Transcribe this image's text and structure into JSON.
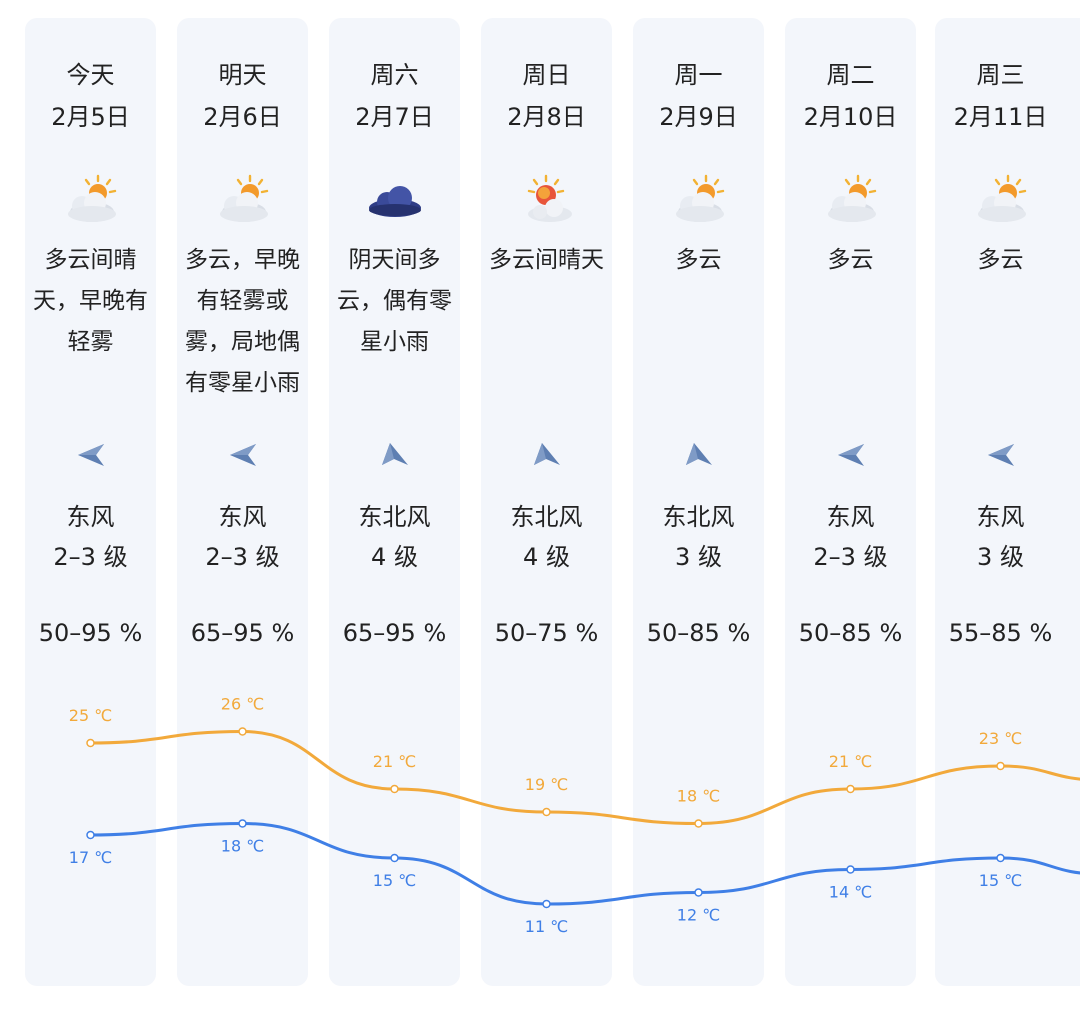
{
  "days": [
    {
      "weekday": "今天",
      "date": "2月5日",
      "icon": "partly-cloudy-icon",
      "desc": "多云间晴天，早晚有轻雾",
      "wind_icon": "east-wind-arrow-icon",
      "wind_dir": "东风",
      "wind_level": "2–3 级",
      "humidity": "50–95 %"
    },
    {
      "weekday": "明天",
      "date": "2月6日",
      "icon": "partly-cloudy-icon",
      "desc": "多云，早晚有轻雾或雾，局地偶有零星小雨",
      "wind_icon": "east-wind-arrow-icon",
      "wind_dir": "东风",
      "wind_level": "2–3 级",
      "humidity": "65–95 %"
    },
    {
      "weekday": "周六",
      "date": "2月7日",
      "icon": "overcast-cloud-icon",
      "desc": "阴天间多云，偶有零星小雨",
      "wind_icon": "northeast-wind-arrow-icon",
      "wind_dir": "东北风",
      "wind_level": "4 级",
      "humidity": "65–95 %"
    },
    {
      "weekday": "周日",
      "date": "2月8日",
      "icon": "sunny-cloudy-icon",
      "desc": "多云间晴天",
      "wind_icon": "northeast-wind-arrow-icon",
      "wind_dir": "东北风",
      "wind_level": "4 级",
      "humidity": "50–75 %"
    },
    {
      "weekday": "周一",
      "date": "2月9日",
      "icon": "partly-cloudy-icon",
      "desc": "多云",
      "wind_icon": "northeast-wind-arrow-icon",
      "wind_dir": "东北风",
      "wind_level": "3 级",
      "humidity": "50–85 %"
    },
    {
      "weekday": "周二",
      "date": "2月10日",
      "icon": "partly-cloudy-icon",
      "desc": "多云",
      "wind_icon": "east-wind-arrow-icon",
      "wind_dir": "东风",
      "wind_level": "2–3 级",
      "humidity": "50–85 %"
    },
    {
      "weekday": "周三",
      "date": "2月11日",
      "icon": "partly-cloudy-icon",
      "desc": "多云",
      "wind_icon": "east-wind-arrow-icon",
      "wind_dir": "东风",
      "wind_level": "3 级",
      "humidity": "55–85 %"
    }
  ],
  "colors": {
    "high": "#f2a93b",
    "low": "#3f7fe6",
    "column_bg": "#f3f6fb",
    "arrow": "#5e7fb2"
  },
  "chart_data": {
    "type": "line",
    "categories": [
      "2月5日",
      "2月6日",
      "2月7日",
      "2月8日",
      "2月9日",
      "2月10日",
      "2月11日"
    ],
    "unit": "℃",
    "series": [
      {
        "values": [
          25,
          26,
          21,
          19,
          18,
          21,
          23
        ],
        "labels": [
          "25 ℃",
          "26 ℃",
          "21 ℃",
          "19 ℃",
          "18 ℃",
          "21 ℃",
          "23 ℃"
        ]
      },
      {
        "values": [
          17,
          18,
          15,
          11,
          12,
          14,
          15
        ],
        "labels": [
          "17 ℃",
          "18 ℃",
          "15 ℃",
          "11 ℃",
          "12 ℃",
          "14 ℃",
          "15 ℃"
        ]
      }
    ],
    "ylim": [
      5,
      32
    ],
    "grid": false
  }
}
